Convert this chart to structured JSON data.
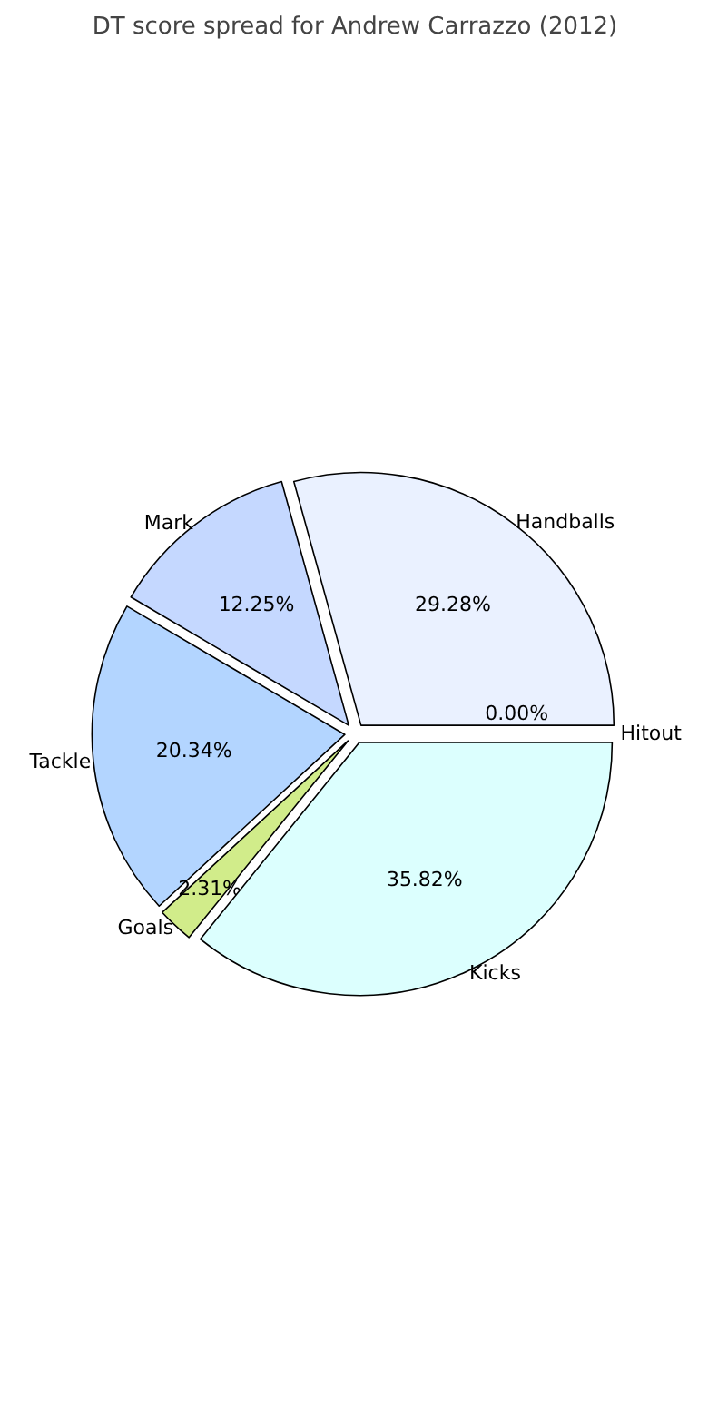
{
  "chart_data": {
    "type": "pie",
    "title": "DT score spread for Andrew Carrazzo (2012)",
    "categories": [
      "Handballs",
      "Mark",
      "Tackle",
      "Goals",
      "Kicks",
      "Hitout"
    ],
    "values": [
      29.28,
      12.25,
      20.34,
      2.31,
      35.82,
      0.0
    ],
    "value_labels": [
      "29.28%",
      "12.25%",
      "20.34%",
      "2.31%",
      "35.82%",
      "0.00%"
    ],
    "colors": [
      "#eaf1ff",
      "#c5d8ff",
      "#b3d5ff",
      "#d1ec8a",
      "#dcfffe",
      "#e0e0e0"
    ]
  }
}
